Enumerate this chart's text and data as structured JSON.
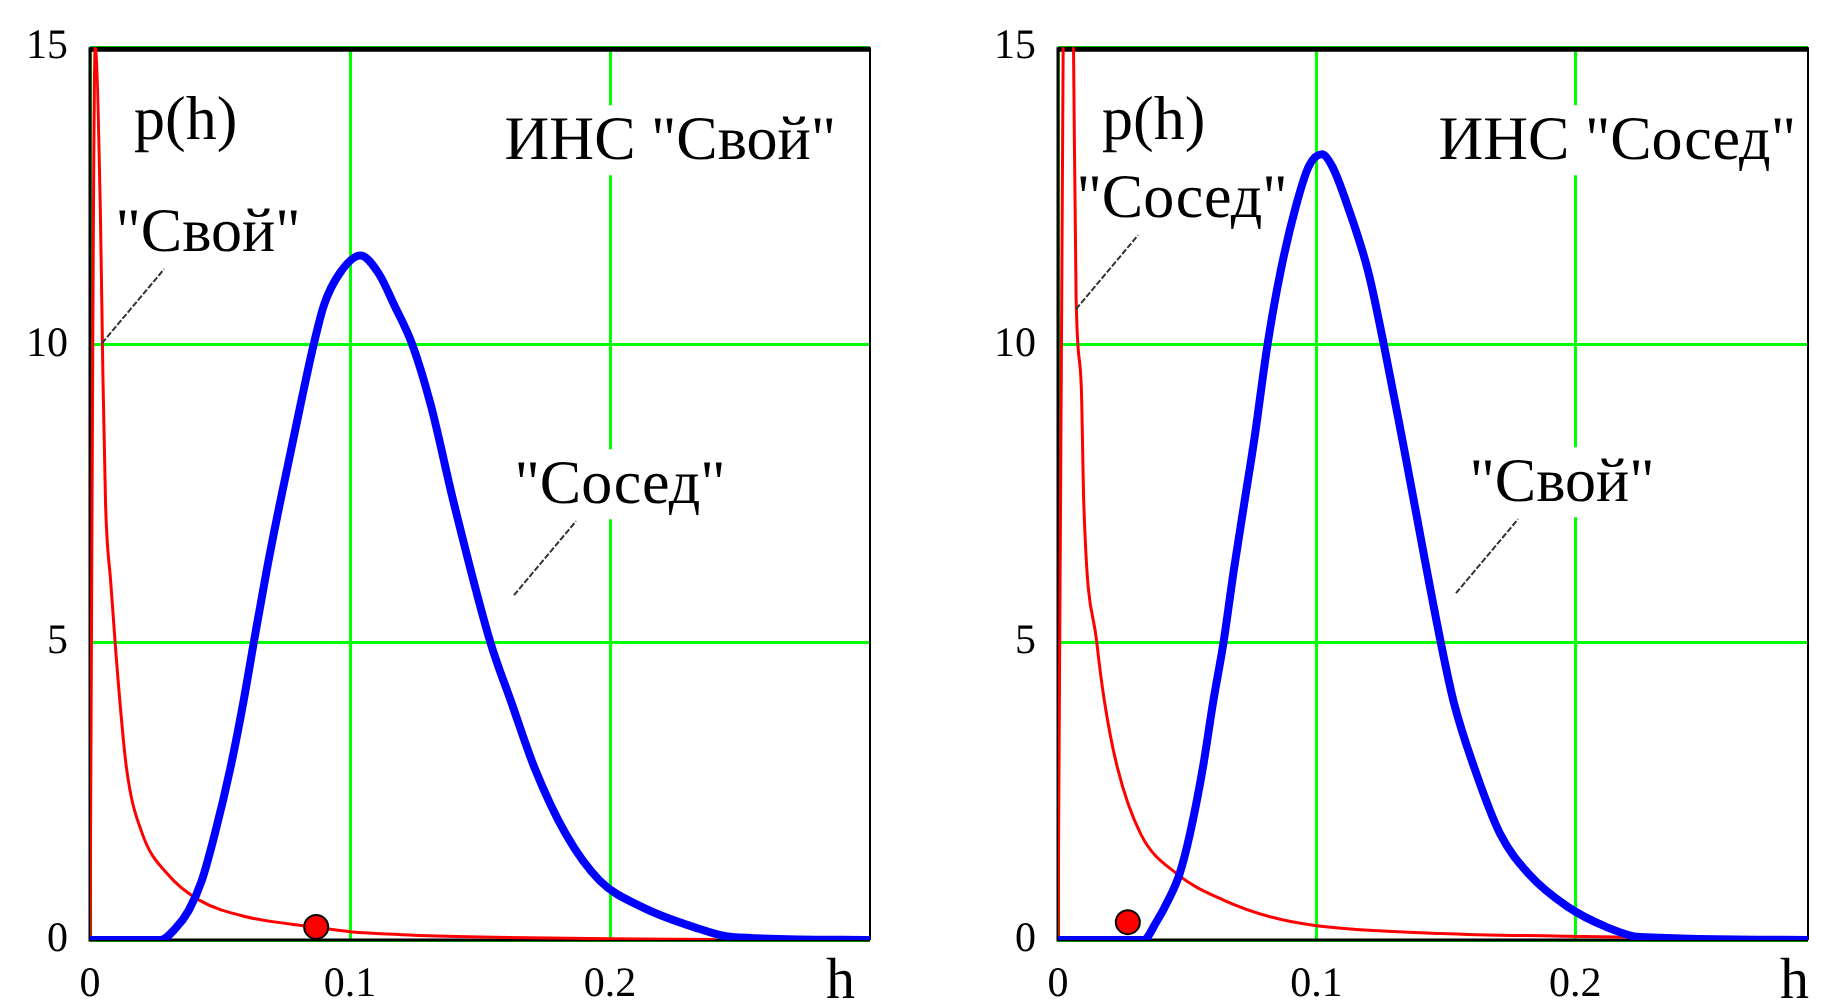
{
  "chart_data": [
    {
      "type": "line",
      "title": "ИНС \"Свой\"",
      "xlabel": "h",
      "ylabel": "p(h)",
      "xlim": [
        0,
        0.3
      ],
      "ylim": [
        0,
        15
      ],
      "xticks": [
        0,
        0.1,
        0.2
      ],
      "yticks": [
        0,
        5,
        10,
        15
      ],
      "grid": true,
      "series": [
        {
          "name": "\"Свой\"",
          "color": "#ff0000",
          "x": [
            0,
            0.002,
            0.004,
            0.005,
            0.006,
            0.008,
            0.01,
            0.014,
            0.02,
            0.03,
            0.042,
            0.06,
            0.086,
            0.1,
            0.12,
            0.15,
            0.2,
            0.24
          ],
          "values": [
            0,
            15,
            12.2,
            9.4,
            7.3,
            6,
            4.8,
            2.9,
            1.8,
            1.1,
            0.67,
            0.39,
            0.22,
            0.14,
            0.09,
            0.05,
            0.02,
            0.01
          ]
        },
        {
          "name": "\"Сосед\"",
          "color": "#0000ff",
          "x": [
            0,
            0.027,
            0.033,
            0.038,
            0.043,
            0.048,
            0.054,
            0.059,
            0.063,
            0.068,
            0.073,
            0.081,
            0.086,
            0.09,
            0.096,
            0.104,
            0.111,
            0.117,
            0.124,
            0.131,
            0.14,
            0.154,
            0.162,
            0.171,
            0.183,
            0.196,
            0.212,
            0.232,
            0.247,
            0.3
          ],
          "values": [
            0,
            0,
            0.2,
            0.5,
            1,
            1.78,
            2.89,
            4,
            5,
            6.22,
            7.33,
            9,
            10,
            10.67,
            11.2,
            11.5,
            11.2,
            10.67,
            10,
            9,
            7.33,
            5,
            4,
            2.89,
            1.78,
            1,
            0.56,
            0.22,
            0.05,
            0
          ]
        },
        {
          "type": "scatter",
          "color": "#ff0000",
          "marker": "circle",
          "x": [
            0.087
          ],
          "values": [
            0.22
          ]
        }
      ]
    },
    {
      "type": "line",
      "title": "ИНС \"Сосед\"",
      "xlabel": "h",
      "ylabel": "p(h)",
      "xlim": [
        0,
        0.29
      ],
      "ylim": [
        0,
        15
      ],
      "xticks": [
        0,
        0.1,
        0.2
      ],
      "yticks": [
        0,
        5,
        10,
        15
      ],
      "grid": true,
      "series": [
        {
          "name": "\"Сосед\"",
          "color": "#ff0000",
          "x": [
            0,
            0.002,
            0.004,
            0.006,
            0.007,
            0.009,
            0.01,
            0.015,
            0.018,
            0.023,
            0.032,
            0.046,
            0.064,
            0.082,
            0.1,
            0.148,
            0.22
          ],
          "values": [
            0,
            15,
            null,
            15,
            10.8,
            9.3,
            7.3,
            5,
            4,
            2.89,
            1.78,
            1.11,
            0.67,
            0.39,
            0.24,
            0.11,
            0.05
          ]
        },
        {
          "name": "\"Свой\"",
          "color": "#0000ff",
          "x": [
            0,
            0.033,
            0.038,
            0.043,
            0.047,
            0.051,
            0.056,
            0.06,
            0.064,
            0.068,
            0.072,
            0.076,
            0.081,
            0.086,
            0.092,
            0.097,
            0.102,
            0.106,
            0.112,
            0.12,
            0.126,
            0.133,
            0.148,
            0.153,
            0.161,
            0.171,
            0.182,
            0.197,
            0.212,
            0.225,
            0.29
          ],
          "values": [
            0,
            0,
            0.3,
            0.7,
            1.11,
            1.78,
            2.89,
            4,
            5,
            6.22,
            7.33,
            8.44,
            10,
            11.22,
            12.33,
            13,
            13.2,
            13,
            12.33,
            11.22,
            10,
            8.44,
            5,
            4,
            2.89,
            1.78,
            1.11,
            0.56,
            0.22,
            0.05,
            0
          ]
        },
        {
          "type": "scatter",
          "color": "#ff0000",
          "marker": "circle",
          "x": [
            0.027
          ],
          "values": [
            0.3
          ]
        }
      ]
    }
  ]
}
